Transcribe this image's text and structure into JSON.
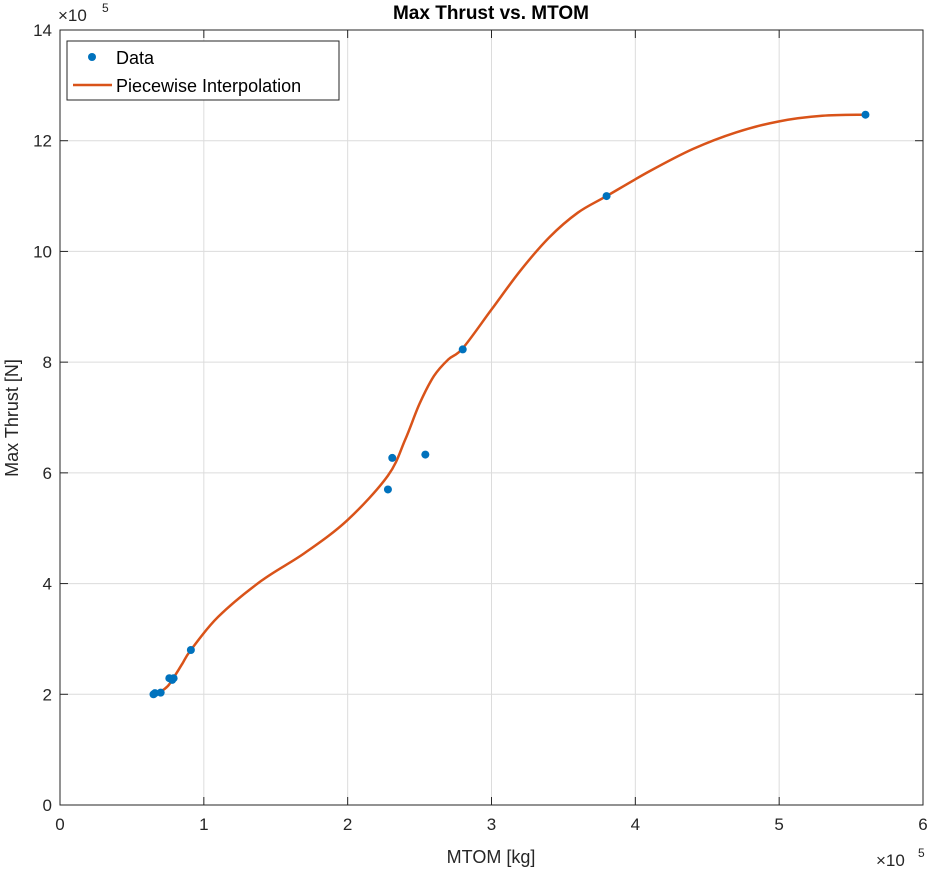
{
  "chart_data": {
    "type": "line",
    "title": "Max Thrust vs. MTOM",
    "xlabel": "MTOM [kg]",
    "ylabel": "Max Thrust [N]",
    "x_multiplier": "×10",
    "x_exponent": "5",
    "y_multiplier": "×10",
    "y_exponent": "5",
    "xlim": [
      0,
      6
    ],
    "ylim": [
      0,
      14
    ],
    "x_ticks": [
      0,
      1,
      2,
      3,
      4,
      5,
      6
    ],
    "y_ticks": [
      0,
      2,
      4,
      6,
      8,
      10,
      12,
      14
    ],
    "x_tick_labels": [
      "0",
      "1",
      "2",
      "3",
      "4",
      "5",
      "6"
    ],
    "y_tick_labels": [
      "0",
      "2",
      "4",
      "6",
      "8",
      "10",
      "12",
      "14"
    ],
    "grid": true,
    "legend_position": "top-left",
    "series": [
      {
        "name": "Data",
        "kind": "scatter",
        "color": "#0072BD",
        "x": [
          0.65,
          0.66,
          0.7,
          0.76,
          0.78,
          0.79,
          0.91,
          2.28,
          2.31,
          2.54,
          2.8,
          3.8,
          5.6
        ],
        "y": [
          2.0,
          2.02,
          2.03,
          2.29,
          2.26,
          2.29,
          2.8,
          5.7,
          6.27,
          6.33,
          8.23,
          11.0,
          12.47
        ]
      },
      {
        "name": "Piecewise Interpolation",
        "kind": "line",
        "color": "#D95319",
        "x": [
          0.65,
          0.7,
          0.75,
          0.79,
          0.85,
          0.91,
          1.1,
          1.4,
          1.7,
          2.0,
          2.28,
          2.4,
          2.5,
          2.6,
          2.7,
          2.8,
          3.0,
          3.2,
          3.4,
          3.6,
          3.8,
          4.1,
          4.4,
          4.7,
          5.0,
          5.3,
          5.6
        ],
        "y": [
          2.0,
          2.05,
          2.15,
          2.3,
          2.55,
          2.8,
          3.4,
          4.05,
          4.55,
          5.15,
          5.95,
          6.6,
          7.25,
          7.75,
          8.05,
          8.25,
          8.95,
          9.65,
          10.25,
          10.7,
          11.0,
          11.45,
          11.85,
          12.15,
          12.35,
          12.45,
          12.47
        ]
      }
    ]
  }
}
